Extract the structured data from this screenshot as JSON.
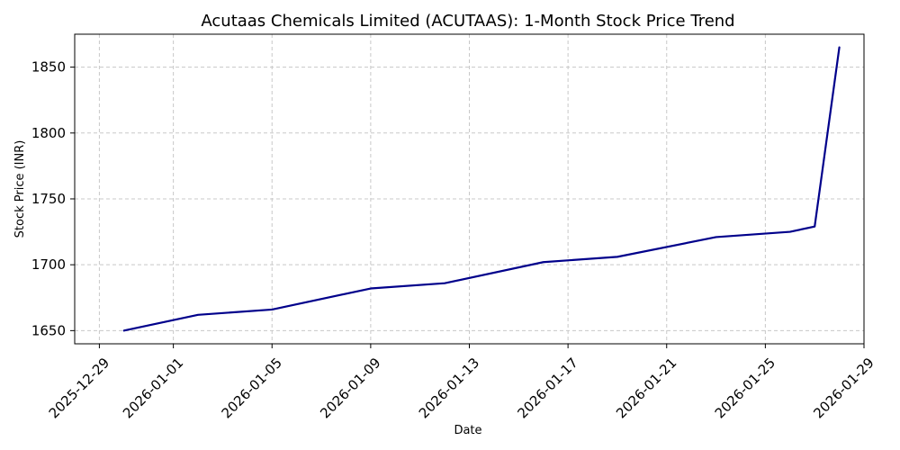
{
  "chart_data": {
    "type": "line",
    "title": "Acutaas Chemicals Limited (ACUTAAS): 1-Month Stock Price Trend",
    "xlabel": "Date",
    "ylabel": "Stock Price (INR)",
    "x_is_date": true,
    "xlim": [
      "2025-12-28",
      "2026-01-29"
    ],
    "ylim": [
      1640,
      1875
    ],
    "x_ticks": [
      "2025-12-29",
      "2026-01-01",
      "2026-01-05",
      "2026-01-09",
      "2026-01-13",
      "2026-01-17",
      "2026-01-21",
      "2026-01-25",
      "2026-01-29"
    ],
    "y_ticks": [
      1650,
      1700,
      1750,
      1800,
      1850
    ],
    "grid": true,
    "series": [
      {
        "color": "#00008b",
        "x": [
          "2025-12-30",
          "2026-01-02",
          "2026-01-05",
          "2026-01-09",
          "2026-01-12",
          "2026-01-16",
          "2026-01-19",
          "2026-01-23",
          "2026-01-26",
          "2026-01-27",
          "2026-01-28"
        ],
        "y": [
          1650,
          1662,
          1666,
          1682,
          1686,
          1702,
          1706,
          1721,
          1725,
          1729,
          1865
        ]
      }
    ]
  }
}
